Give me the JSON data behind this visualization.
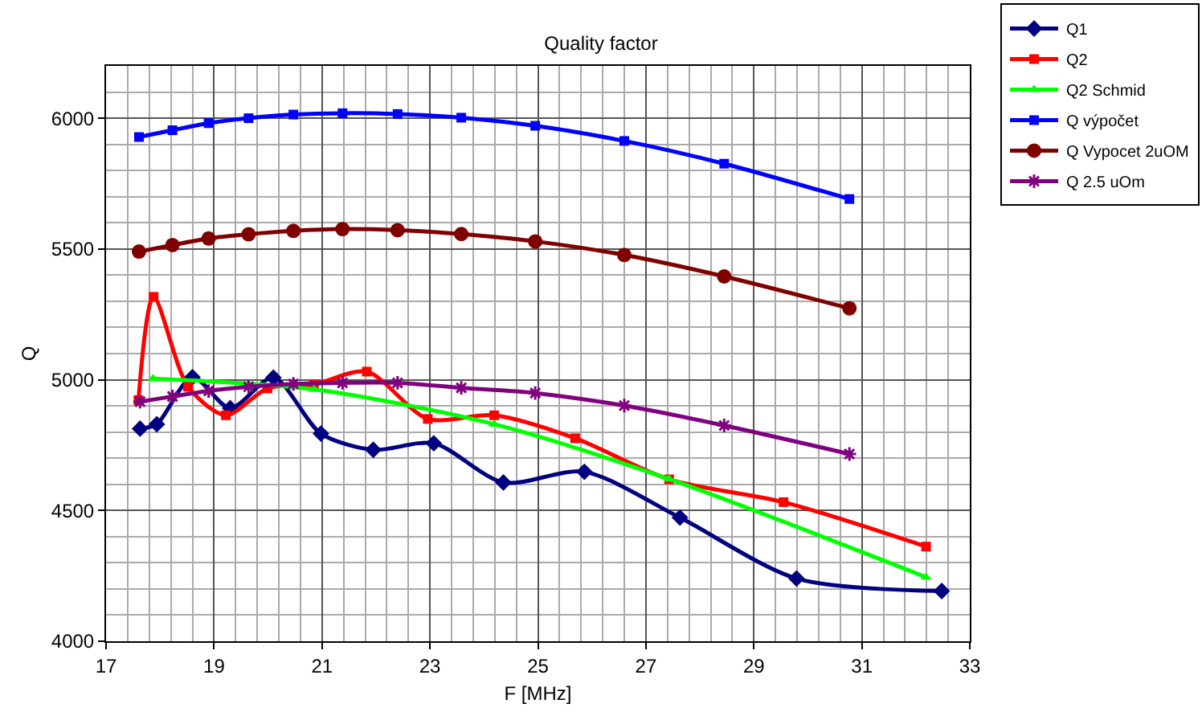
{
  "chart_data": {
    "type": "line",
    "title": "Quality factor",
    "xlabel": "F [MHz]",
    "ylabel": "Q",
    "xlim": [
      17,
      33
    ],
    "xticks": [
      17,
      19,
      21,
      23,
      25,
      27,
      29,
      31,
      33
    ],
    "ylim": [
      4000,
      6200
    ],
    "yticks": [
      4000,
      4500,
      5000,
      5500,
      6000
    ],
    "grid": true,
    "legend": "top right",
    "series": [
      {
        "name": "Q1",
        "color": "#000080",
        "marker": "diamond",
        "x": [
          17.63,
          17.94,
          18.6,
          19.3,
          20.1,
          20.98,
          21.95,
          23.07,
          24.36,
          25.86,
          27.63,
          29.79,
          32.48
        ],
        "values": [
          4813,
          4830,
          5010,
          4891,
          5008,
          4794,
          4732,
          4757,
          4607,
          4648,
          4473,
          4240,
          4192
        ]
      },
      {
        "name": "Q2",
        "color": "#ff0000",
        "marker": "square",
        "x": [
          17.6,
          17.88,
          18.52,
          19.22,
          19.99,
          20.85,
          21.83,
          22.96,
          24.19,
          25.69,
          27.43,
          29.55,
          32.19
        ],
        "values": [
          4922,
          5317,
          4973,
          4864,
          4967,
          4982,
          5031,
          4850,
          4864,
          4776,
          4619,
          4532,
          4362
        ]
      },
      {
        "name": "Q2 Schmid",
        "color": "#00ff00",
        "marker": "triangle",
        "x": [
          17.87,
          20.85,
          24.19,
          27.43,
          32.19
        ],
        "values": [
          5004,
          4963,
          4830,
          4620,
          4245
        ]
      },
      {
        "name": "Q výpočet",
        "color": "#0000ff",
        "marker": "square",
        "x": [
          17.61,
          18.23,
          18.9,
          19.64,
          20.47,
          21.38,
          22.4,
          23.58,
          24.95,
          26.6,
          28.45,
          30.77
        ],
        "values": [
          5928,
          5954,
          5981,
          6000,
          6014,
          6019,
          6016,
          6002,
          5971,
          5913,
          5826,
          5691
        ]
      },
      {
        "name": "Q Vypocet 2uOM",
        "color": "#800000",
        "marker": "circle",
        "x": [
          17.61,
          18.23,
          18.9,
          19.64,
          20.47,
          21.38,
          22.4,
          23.58,
          24.95,
          26.6,
          28.45,
          30.77
        ],
        "values": [
          5490,
          5515,
          5540,
          5556,
          5569,
          5576,
          5572,
          5557,
          5529,
          5477,
          5395,
          5273
        ]
      },
      {
        "name": "Q 2.5 uOm",
        "color": "#800080",
        "marker": "cross",
        "x": [
          17.63,
          18.23,
          18.9,
          19.64,
          20.47,
          21.38,
          22.4,
          23.58,
          24.95,
          26.6,
          28.45,
          30.77
        ],
        "values": [
          4916,
          4936,
          4957,
          4973,
          4984,
          4988,
          4988,
          4969,
          4949,
          4901,
          4825,
          4716
        ]
      }
    ]
  }
}
